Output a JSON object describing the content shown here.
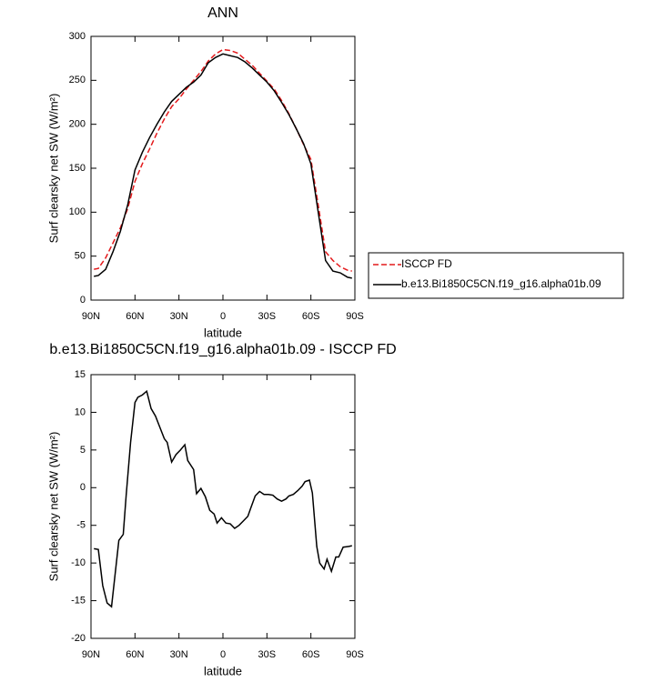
{
  "chart_data": [
    {
      "type": "line",
      "title": "ANN",
      "xlabel": "latitude",
      "ylabel": "Surf clearsky net SW (W/m²)",
      "x": [
        88,
        85,
        80,
        75,
        70,
        65,
        60,
        55,
        50,
        45,
        40,
        35,
        30,
        25,
        20,
        15,
        10,
        5,
        0,
        -5,
        -10,
        -15,
        -20,
        -25,
        -30,
        -35,
        -40,
        -45,
        -50,
        -55,
        -60,
        -65,
        -70,
        -75,
        -80,
        -85,
        -88
      ],
      "series": [
        {
          "name": "ISCCP FD",
          "color": "#e41a1c",
          "linestyle": "dashed",
          "values": [
            35,
            36,
            48,
            65,
            82,
            104,
            135,
            155,
            172,
            190,
            206,
            220,
            229,
            240,
            250,
            260,
            272,
            280,
            285,
            284,
            281,
            274,
            267,
            258,
            249,
            240,
            227,
            212,
            195,
            177,
            160,
            108,
            55,
            45,
            38,
            34,
            33
          ]
        },
        {
          "name": "b.e13.Bi1850C5CN.f19_g16.alpha01b.09",
          "color": "#000000",
          "linestyle": "solid",
          "values": [
            27,
            28,
            35,
            55,
            78,
            108,
            148,
            168,
            185,
            200,
            214,
            226,
            234,
            242,
            248,
            256,
            270,
            276,
            280,
            278,
            276,
            271,
            264,
            256,
            248,
            238,
            225,
            211,
            195,
            178,
            155,
            100,
            45,
            33,
            31,
            26,
            25
          ]
        }
      ],
      "xlim": [
        90,
        -90
      ],
      "xticks": [
        {
          "value": 90,
          "label": "90N"
        },
        {
          "value": 60,
          "label": "60N"
        },
        {
          "value": 30,
          "label": "30N"
        },
        0,
        {
          "value": -30,
          "label": "30S"
        },
        {
          "value": -60,
          "label": "60S"
        },
        {
          "value": -90,
          "label": "90S"
        }
      ],
      "ylim": [
        0,
        300
      ],
      "yticks": [
        0,
        50,
        100,
        150,
        200,
        250,
        300
      ],
      "legend": "outside-right"
    },
    {
      "type": "line",
      "title": "b.e13.Bi1850C5CN.f19_g16.alpha01b.09 - ISCCP FD",
      "xlabel": "latitude",
      "ylabel": "Surf clearsky net SW (W/m²)",
      "x": [
        88,
        85,
        82,
        79,
        76,
        71,
        68,
        66,
        63,
        60,
        58,
        55,
        52,
        49,
        46,
        43,
        40,
        38,
        35,
        32,
        29,
        26,
        24,
        20,
        18,
        15,
        12,
        9,
        6,
        4,
        1,
        -2,
        -5,
        -8,
        -11,
        -14,
        -17,
        -19,
        -22,
        -25,
        -28,
        -31,
        -34,
        -37,
        -40,
        -43,
        -45,
        -48,
        -51,
        -54,
        -56,
        -59,
        -61,
        -64,
        -66,
        -69,
        -71,
        -74,
        -77,
        -79,
        -82,
        -86,
        -88
      ],
      "series": [
        {
          "name": "b.e13.Bi1850C5CN.f19_g16.alpha01b.09 - ISCCP FD",
          "color": "#000000",
          "linestyle": "solid",
          "values": [
            -8.1,
            -8.2,
            -13,
            -15.3,
            -15.8,
            -7,
            -6.2,
            -1,
            6,
            11.3,
            12,
            12.3,
            12.8,
            10.5,
            9.5,
            8,
            6.5,
            6,
            3.4,
            4.4,
            5,
            5.7,
            3.6,
            2.4,
            -0.8,
            -0.1,
            -1.2,
            -3,
            -3.5,
            -4.7,
            -4,
            -4.7,
            -4.8,
            -5.4,
            -5,
            -4.4,
            -3.8,
            -2.7,
            -1.1,
            -0.5,
            -0.9,
            -0.9,
            -1,
            -1.5,
            -1.8,
            -1.5,
            -1.1,
            -0.9,
            -0.4,
            0.2,
            0.8,
            1,
            -0.7,
            -7.8,
            -10,
            -10.8,
            -9.5,
            -11.1,
            -9.2,
            -9.2,
            -7.9,
            -7.8,
            -7.7
          ]
        }
      ],
      "xlim": [
        90,
        -90
      ],
      "xticks": [
        {
          "value": 90,
          "label": "90N"
        },
        {
          "value": 60,
          "label": "60N"
        },
        {
          "value": 30,
          "label": "30N"
        },
        0,
        {
          "value": -30,
          "label": "30S"
        },
        {
          "value": -60,
          "label": "60S"
        },
        {
          "value": -90,
          "label": "90S"
        }
      ],
      "ylim": [
        -20,
        15
      ],
      "yticks": [
        -20,
        -15,
        -10,
        -5,
        0,
        5,
        10,
        15
      ]
    }
  ]
}
